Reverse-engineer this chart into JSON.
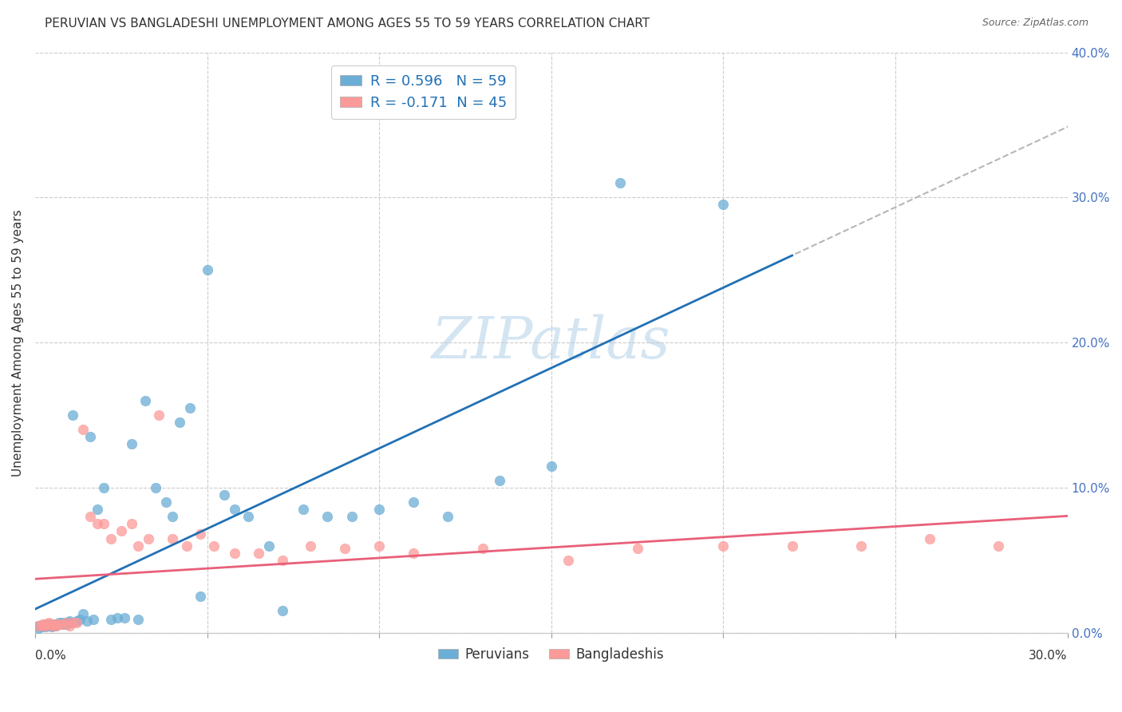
{
  "title": "PERUVIAN VS BANGLADESHI UNEMPLOYMENT AMONG AGES 55 TO 59 YEARS CORRELATION CHART",
  "source": "Source: ZipAtlas.com",
  "ylabel": "Unemployment Among Ages 55 to 59 years",
  "xlim": [
    0.0,
    0.3
  ],
  "ylim": [
    0.0,
    0.4
  ],
  "peru_color": "#6baed6",
  "bang_color": "#fb9a99",
  "peru_line_color": "#2171b5",
  "bang_line_color": "#e8607a",
  "watermark_color": "#b8d4ea",
  "peru_x": [
    0.001,
    0.001,
    0.002,
    0.002,
    0.003,
    0.003,
    0.003,
    0.004,
    0.004,
    0.005,
    0.005,
    0.005,
    0.006,
    0.006,
    0.007,
    0.007,
    0.008,
    0.008,
    0.009,
    0.009,
    0.01,
    0.01,
    0.011,
    0.012,
    0.013,
    0.014,
    0.015,
    0.016,
    0.017,
    0.018,
    0.02,
    0.022,
    0.024,
    0.026,
    0.028,
    0.03,
    0.032,
    0.035,
    0.038,
    0.04,
    0.042,
    0.045,
    0.048,
    0.05,
    0.055,
    0.058,
    0.062,
    0.068,
    0.072,
    0.078,
    0.085,
    0.092,
    0.1,
    0.11,
    0.12,
    0.135,
    0.15,
    0.17,
    0.2
  ],
  "peru_y": [
    0.003,
    0.005,
    0.004,
    0.005,
    0.004,
    0.005,
    0.006,
    0.005,
    0.006,
    0.004,
    0.005,
    0.006,
    0.005,
    0.006,
    0.006,
    0.007,
    0.006,
    0.007,
    0.006,
    0.007,
    0.007,
    0.008,
    0.15,
    0.008,
    0.009,
    0.013,
    0.008,
    0.135,
    0.009,
    0.085,
    0.1,
    0.009,
    0.01,
    0.01,
    0.13,
    0.009,
    0.16,
    0.1,
    0.09,
    0.08,
    0.145,
    0.155,
    0.025,
    0.25,
    0.095,
    0.085,
    0.08,
    0.06,
    0.015,
    0.085,
    0.08,
    0.08,
    0.085,
    0.09,
    0.08,
    0.105,
    0.115,
    0.31,
    0.295
  ],
  "bang_x": [
    0.001,
    0.002,
    0.002,
    0.003,
    0.003,
    0.004,
    0.005,
    0.005,
    0.006,
    0.006,
    0.007,
    0.008,
    0.009,
    0.01,
    0.011,
    0.012,
    0.014,
    0.016,
    0.018,
    0.02,
    0.022,
    0.025,
    0.028,
    0.03,
    0.033,
    0.036,
    0.04,
    0.044,
    0.048,
    0.052,
    0.058,
    0.065,
    0.072,
    0.08,
    0.09,
    0.1,
    0.11,
    0.13,
    0.155,
    0.175,
    0.2,
    0.22,
    0.24,
    0.26,
    0.28
  ],
  "bang_y": [
    0.005,
    0.005,
    0.006,
    0.005,
    0.006,
    0.007,
    0.005,
    0.006,
    0.005,
    0.006,
    0.006,
    0.006,
    0.007,
    0.005,
    0.007,
    0.007,
    0.14,
    0.08,
    0.075,
    0.075,
    0.065,
    0.07,
    0.075,
    0.06,
    0.065,
    0.15,
    0.065,
    0.06,
    0.068,
    0.06,
    0.055,
    0.055,
    0.05,
    0.06,
    0.058,
    0.06,
    0.055,
    0.058,
    0.05,
    0.058,
    0.06,
    0.06,
    0.06,
    0.065,
    0.06
  ]
}
